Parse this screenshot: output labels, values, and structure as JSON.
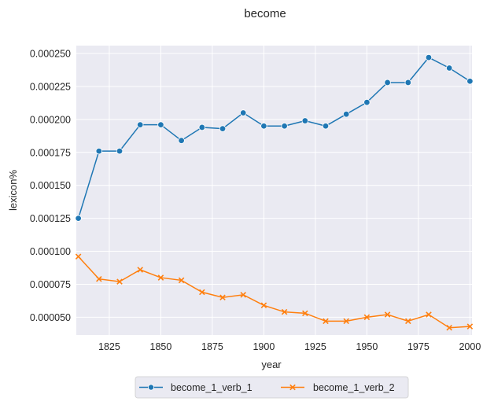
{
  "chart_data": {
    "type": "line",
    "title": "become",
    "xlabel": "year",
    "ylabel": "lexicon%",
    "xlim": [
      1809,
      2001
    ],
    "ylim": [
      3.65e-05,
      0.000256
    ],
    "grid": true,
    "background": "#eaeaf2",
    "x": [
      1810,
      1820,
      1830,
      1840,
      1850,
      1860,
      1870,
      1880,
      1890,
      1900,
      1910,
      1920,
      1930,
      1940,
      1950,
      1960,
      1970,
      1980,
      1990,
      2000
    ],
    "x_ticks": [
      1825,
      1850,
      1875,
      1900,
      1925,
      1950,
      1975,
      2000
    ],
    "x_tick_labels": [
      "1825",
      "1850",
      "1875",
      "1900",
      "1925",
      "1950",
      "1975",
      "2000"
    ],
    "y_ticks": [
      5e-05,
      7.5e-05,
      0.0001,
      0.000125,
      0.00015,
      0.000175,
      0.0002,
      0.000225,
      0.00025
    ],
    "y_tick_labels": [
      "0.000050",
      "0.000075",
      "0.000100",
      "0.000125",
      "0.000150",
      "0.000175",
      "0.000200",
      "0.000225",
      "0.000250"
    ],
    "legend_position": "bottom-center",
    "series": [
      {
        "name": "become_1_verb_1",
        "color": "#1f77b4",
        "marker": "circle",
        "values": [
          0.000125,
          0.000176,
          0.000176,
          0.000196,
          0.000196,
          0.000184,
          0.000194,
          0.000193,
          0.000205,
          0.000195,
          0.000195,
          0.000199,
          0.000195,
          0.000204,
          0.000213,
          0.000228,
          0.000228,
          0.000247,
          0.000239,
          0.000229
        ]
      },
      {
        "name": "become_1_verb_2",
        "color": "#ff7f0e",
        "marker": "x",
        "values": [
          9.6e-05,
          7.9e-05,
          7.7e-05,
          8.6e-05,
          8e-05,
          7.8e-05,
          6.9e-05,
          6.5e-05,
          6.7e-05,
          5.9e-05,
          5.4e-05,
          5.3e-05,
          4.7e-05,
          4.7e-05,
          5e-05,
          5.2e-05,
          4.7e-05,
          5.2e-05,
          4.2e-05,
          4.3e-05
        ]
      }
    ]
  }
}
